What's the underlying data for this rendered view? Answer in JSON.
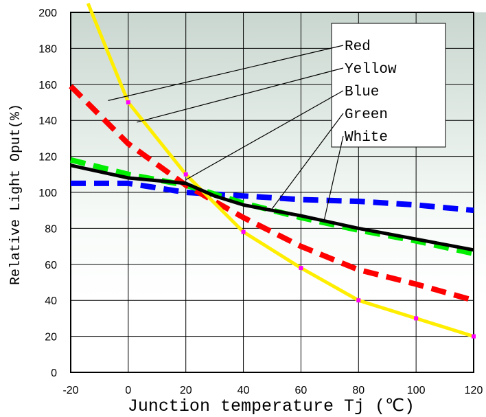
{
  "chart_data": {
    "type": "line",
    "xlabel": "Junction temperature Tj (℃)",
    "ylabel": "Relative Light Oput(%)",
    "xlim": [
      -20,
      120
    ],
    "ylim": [
      0,
      200
    ],
    "x_ticks": [
      "-20",
      "0",
      "20",
      "40",
      "60",
      "80",
      "100",
      "120"
    ],
    "y_ticks": [
      "0",
      "20",
      "40",
      "60",
      "80",
      "100",
      "120",
      "140",
      "160",
      "180",
      "200"
    ],
    "grid": true,
    "legend": "top-right",
    "series": [
      {
        "name": "Red",
        "color": "#ff0000",
        "style": "dashed",
        "points": [
          [
            -20,
            159
          ],
          [
            0,
            127
          ],
          [
            20,
            104
          ],
          [
            40,
            86
          ],
          [
            60,
            70
          ],
          [
            80,
            57
          ],
          [
            100,
            49
          ],
          [
            120,
            40
          ]
        ]
      },
      {
        "name": "Yellow",
        "color": "#ffee00",
        "style": "solid",
        "points": [
          [
            -14,
            205
          ],
          [
            0,
            150
          ],
          [
            20,
            110
          ],
          [
            40,
            78
          ],
          [
            60,
            58
          ],
          [
            80,
            40
          ],
          [
            100,
            30
          ],
          [
            120,
            20
          ]
        ]
      },
      {
        "name": "Blue",
        "color": "#0000ff",
        "style": "dashed",
        "points": [
          [
            -20,
            105
          ],
          [
            -10,
            105
          ],
          [
            0,
            105
          ],
          [
            12,
            102
          ],
          [
            20,
            100
          ],
          [
            40,
            98
          ],
          [
            60,
            96
          ],
          [
            80,
            95
          ],
          [
            100,
            93
          ],
          [
            120,
            90
          ]
        ]
      },
      {
        "name": "Green",
        "color": "#00ee00",
        "style": "dashed",
        "points": [
          [
            -20,
            118
          ],
          [
            0,
            110
          ],
          [
            20,
            104
          ],
          [
            40,
            94
          ],
          [
            60,
            86
          ],
          [
            80,
            79
          ],
          [
            100,
            73
          ],
          [
            120,
            66
          ]
        ]
      },
      {
        "name": "White",
        "color": "#000000",
        "style": "solid",
        "points": [
          [
            -20,
            115
          ],
          [
            0,
            108
          ],
          [
            20,
            105
          ],
          [
            30,
            98
          ],
          [
            40,
            93
          ],
          [
            60,
            87
          ],
          [
            80,
            80
          ],
          [
            100,
            74
          ],
          [
            120,
            68
          ]
        ]
      }
    ],
    "annotations": [
      {
        "series": "Red",
        "target": [
          -7,
          151
        ]
      },
      {
        "series": "Yellow",
        "target": [
          3,
          139
        ]
      },
      {
        "series": "Blue",
        "target": [
          20,
          107
        ]
      },
      {
        "series": "Green",
        "target": [
          50,
          91
        ]
      },
      {
        "series": "White",
        "target": [
          68,
          84
        ]
      }
    ]
  }
}
